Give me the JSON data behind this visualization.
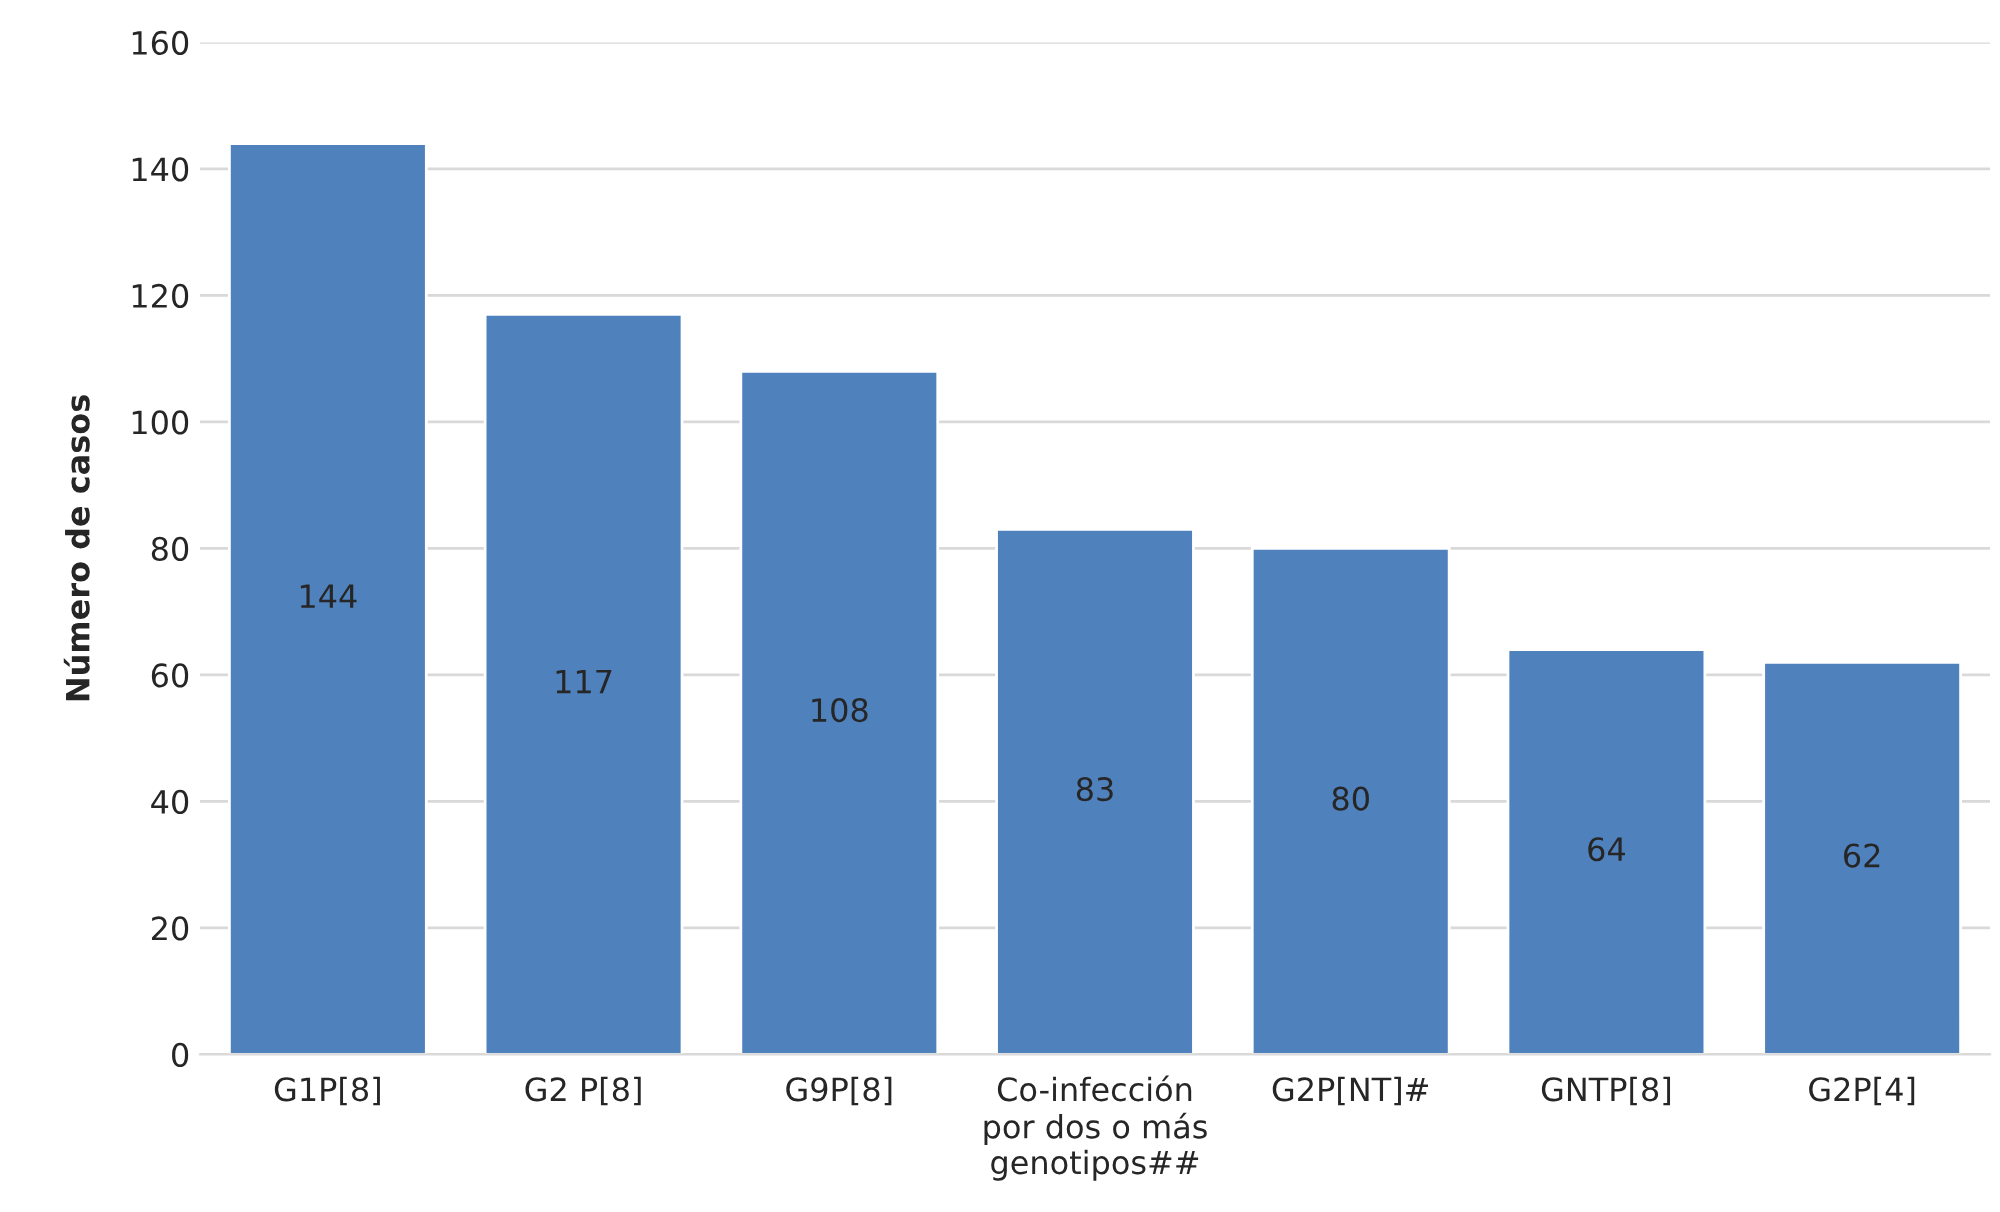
{
  "chart_data": {
    "type": "bar",
    "ylabel": "Número de casos",
    "categories": [
      "G1P[8]",
      "G2 P[8]",
      "G9P[8]",
      "Co-infección\npor dos o más\ngenotipos##",
      "G2P[NT]#",
      "GNTP[8]",
      "G2P[4]"
    ],
    "values": [
      144,
      117,
      108,
      83,
      80,
      64,
      62
    ],
    "color": "#4f81bd",
    "ylim": [
      0,
      160
    ],
    "yticks": [
      0,
      20,
      40,
      60,
      80,
      100,
      120,
      140,
      160
    ],
    "grid": "y",
    "data_labels": true,
    "legend": false
  }
}
